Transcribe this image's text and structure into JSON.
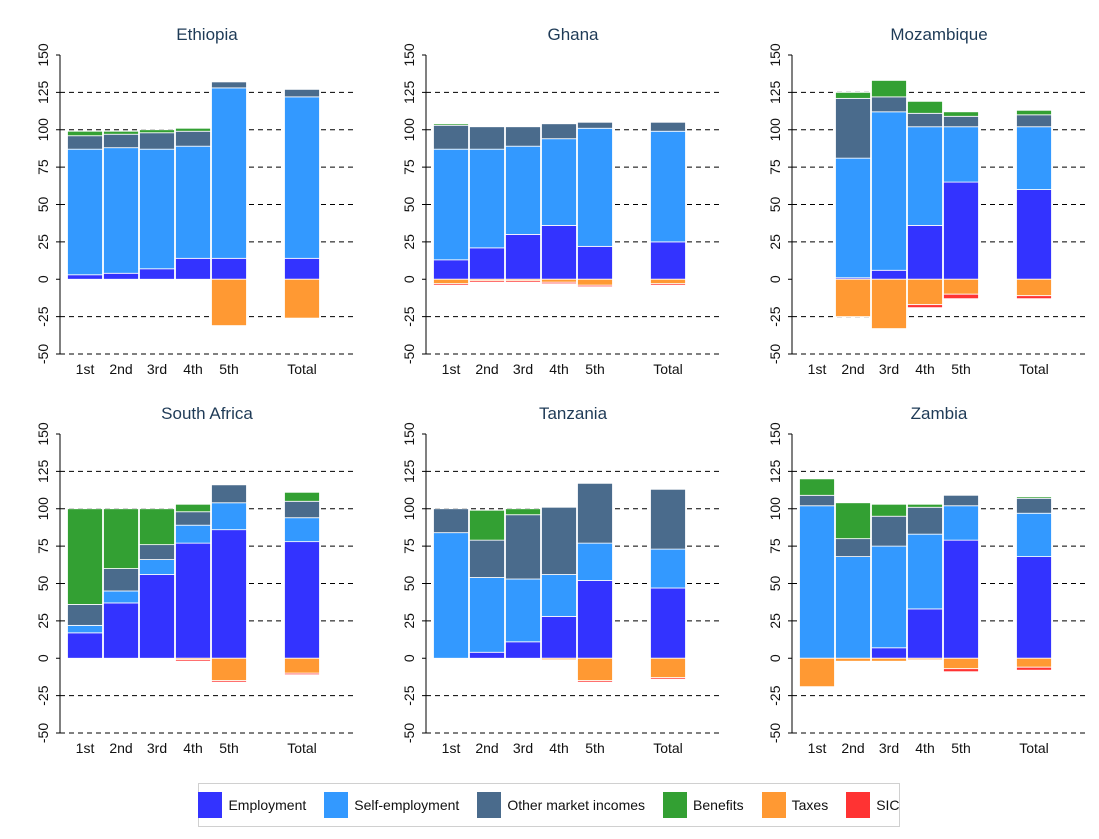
{
  "legend": {
    "items": [
      {
        "label": "Employment",
        "color": "#3333ff"
      },
      {
        "label": "Self-employment",
        "color": "#3399ff"
      },
      {
        "label": "Other market incomes",
        "color": "#4a6b8c"
      },
      {
        "label": "Benefits",
        "color": "#33a033"
      },
      {
        "label": "Taxes",
        "color": "#ff9933"
      },
      {
        "label": "SIC",
        "color": "#ff3333"
      }
    ]
  },
  "chart_data": [
    {
      "type": "bar",
      "stacked": true,
      "title": "Ethiopia",
      "categories": [
        "1st",
        "2nd",
        "3rd",
        "4th",
        "5th",
        "Total"
      ],
      "ylim": [
        -50,
        150
      ],
      "yticks": [
        -50,
        -25,
        0,
        25,
        50,
        75,
        100,
        125,
        150
      ],
      "grid": true,
      "series": [
        {
          "name": "Employment",
          "values": [
            3,
            4,
            7,
            14,
            14,
            14
          ]
        },
        {
          "name": "Self-employment",
          "values": [
            84,
            84,
            80,
            75,
            114,
            108
          ]
        },
        {
          "name": "Other market incomes",
          "values": [
            9,
            9,
            11,
            10,
            4,
            5
          ]
        },
        {
          "name": "Benefits",
          "values": [
            3,
            2,
            2,
            2,
            0,
            0
          ]
        },
        {
          "name": "Taxes",
          "values": [
            0,
            0,
            0,
            0,
            -31,
            -26
          ]
        },
        {
          "name": "SIC",
          "values": [
            0,
            0,
            0,
            0,
            0,
            0
          ]
        }
      ]
    },
    {
      "type": "bar",
      "stacked": true,
      "title": "Ghana",
      "categories": [
        "1st",
        "2nd",
        "3rd",
        "4th",
        "5th",
        "Total"
      ],
      "ylim": [
        -50,
        150
      ],
      "yticks": [
        -50,
        -25,
        0,
        25,
        50,
        75,
        100,
        125,
        150
      ],
      "grid": true,
      "series": [
        {
          "name": "Employment",
          "values": [
            13,
            21,
            30,
            36,
            22,
            25
          ]
        },
        {
          "name": "Self-employment",
          "values": [
            74,
            66,
            59,
            58,
            79,
            74
          ]
        },
        {
          "name": "Other market incomes",
          "values": [
            16,
            15,
            13,
            10,
            4,
            6
          ]
        },
        {
          "name": "Benefits",
          "values": [
            1,
            0,
            0,
            0,
            0,
            0
          ]
        },
        {
          "name": "Taxes",
          "values": [
            -3,
            -1,
            -1,
            -2,
            -4,
            -3
          ]
        },
        {
          "name": "SIC",
          "values": [
            -1,
            -1,
            -1,
            -1,
            -1,
            -1
          ]
        }
      ]
    },
    {
      "type": "bar",
      "stacked": true,
      "title": "Mozambique",
      "categories": [
        "1st",
        "2nd",
        "3rd",
        "4th",
        "5th",
        "Total"
      ],
      "ylim": [
        -50,
        150
      ],
      "yticks": [
        -50,
        -25,
        0,
        25,
        50,
        75,
        100,
        125,
        150
      ],
      "grid": true,
      "series": [
        {
          "name": "Employment",
          "values": [
            0,
            1,
            6,
            36,
            65,
            60
          ]
        },
        {
          "name": "Self-employment",
          "values": [
            0,
            80,
            106,
            66,
            37,
            42
          ]
        },
        {
          "name": "Other market incomes",
          "values": [
            0,
            40,
            10,
            9,
            7,
            8
          ]
        },
        {
          "name": "Benefits",
          "values": [
            0,
            4,
            11,
            8,
            3,
            3
          ]
        },
        {
          "name": "Taxes",
          "values": [
            0,
            -25,
            -33,
            -17,
            -10,
            -11
          ]
        },
        {
          "name": "SIC",
          "values": [
            0,
            0,
            0,
            -2,
            -3,
            -2
          ]
        }
      ]
    },
    {
      "type": "bar",
      "stacked": true,
      "title": "South Africa",
      "categories": [
        "1st",
        "2nd",
        "3rd",
        "4th",
        "5th",
        "Total"
      ],
      "ylim": [
        -50,
        150
      ],
      "yticks": [
        -50,
        -25,
        0,
        25,
        50,
        75,
        100,
        125,
        150
      ],
      "grid": true,
      "series": [
        {
          "name": "Employment",
          "values": [
            17,
            37,
            56,
            77,
            86,
            78
          ]
        },
        {
          "name": "Self-employment",
          "values": [
            5,
            8,
            10,
            12,
            18,
            16
          ]
        },
        {
          "name": "Other market incomes",
          "values": [
            14,
            15,
            10,
            9,
            12,
            11
          ]
        },
        {
          "name": "Benefits",
          "values": [
            64,
            40,
            24,
            5,
            0,
            6
          ]
        },
        {
          "name": "Taxes",
          "values": [
            0,
            0,
            0,
            -1,
            -15,
            -10
          ]
        },
        {
          "name": "SIC",
          "values": [
            0,
            0,
            0,
            -1,
            -1,
            -1
          ]
        }
      ]
    },
    {
      "type": "bar",
      "stacked": true,
      "title": "Tanzania",
      "categories": [
        "1st",
        "2nd",
        "3rd",
        "4th",
        "5th",
        "Total"
      ],
      "ylim": [
        -50,
        150
      ],
      "yticks": [
        -50,
        -25,
        0,
        25,
        50,
        75,
        100,
        125,
        150
      ],
      "grid": true,
      "series": [
        {
          "name": "Employment",
          "values": [
            0,
            4,
            11,
            28,
            52,
            47
          ]
        },
        {
          "name": "Self-employment",
          "values": [
            84,
            50,
            42,
            28,
            25,
            26
          ]
        },
        {
          "name": "Other market incomes",
          "values": [
            16,
            25,
            43,
            45,
            40,
            40
          ]
        },
        {
          "name": "Benefits",
          "values": [
            0,
            20,
            4,
            0,
            0,
            0
          ]
        },
        {
          "name": "Taxes",
          "values": [
            0,
            0,
            0,
            -1,
            -15,
            -13
          ]
        },
        {
          "name": "SIC",
          "values": [
            0,
            0,
            0,
            0,
            -1,
            -1
          ]
        }
      ]
    },
    {
      "type": "bar",
      "stacked": true,
      "title": "Zambia",
      "categories": [
        "1st",
        "2nd",
        "3rd",
        "4th",
        "5th",
        "Total"
      ],
      "ylim": [
        -50,
        150
      ],
      "yticks": [
        -50,
        -25,
        0,
        25,
        50,
        75,
        100,
        125,
        150
      ],
      "grid": true,
      "series": [
        {
          "name": "Employment",
          "values": [
            0,
            0,
            7,
            33,
            79,
            68
          ]
        },
        {
          "name": "Self-employment",
          "values": [
            102,
            68,
            68,
            50,
            23,
            29
          ]
        },
        {
          "name": "Other market incomes",
          "values": [
            7,
            12,
            20,
            18,
            7,
            10
          ]
        },
        {
          "name": "Benefits",
          "values": [
            11,
            24,
            8,
            2,
            0,
            1
          ]
        },
        {
          "name": "Taxes",
          "values": [
            -19,
            -2,
            -2,
            -1,
            -7,
            -6
          ]
        },
        {
          "name": "SIC",
          "values": [
            0,
            0,
            0,
            0,
            -2,
            -2
          ]
        }
      ]
    }
  ]
}
